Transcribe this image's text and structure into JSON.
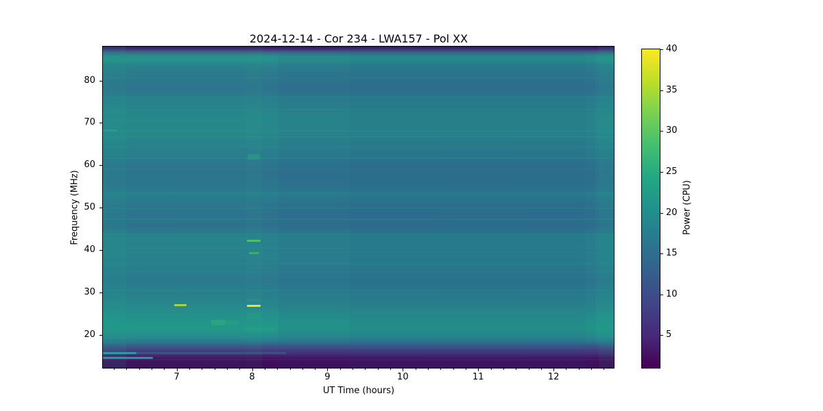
{
  "chart_data": {
    "type": "heatmap",
    "title": "2024-12-14 - Cor 234 - LWA157 - Pol XX",
    "xlabel": "UT Time (hours)",
    "ylabel": "Frequency (MHz)",
    "x_range": [
      6.02,
      12.8
    ],
    "x_ticks": [
      7,
      8,
      9,
      10,
      11,
      12
    ],
    "x_minor_tick_interval_hours": 0.166667,
    "y_range": [
      12.2,
      88.0
    ],
    "y_ticks": [
      20,
      30,
      40,
      50,
      60,
      70,
      80
    ],
    "colorbar": {
      "label": "Power (CPU)",
      "ticks": [
        5,
        10,
        15,
        20,
        25,
        30,
        35,
        40
      ],
      "range": [
        1,
        40
      ],
      "colormap": "viridis",
      "gradient_stops": [
        {
          "pos": 0.0,
          "color": "#fde725"
        },
        {
          "pos": 0.1,
          "color": "#bddf26"
        },
        {
          "pos": 0.2,
          "color": "#7ad151"
        },
        {
          "pos": 0.3,
          "color": "#44bf70"
        },
        {
          "pos": 0.4,
          "color": "#22a884"
        },
        {
          "pos": 0.5,
          "color": "#21918c"
        },
        {
          "pos": 0.6,
          "color": "#2a788e"
        },
        {
          "pos": 0.7,
          "color": "#355f8d"
        },
        {
          "pos": 0.8,
          "color": "#414487"
        },
        {
          "pos": 0.9,
          "color": "#482878"
        },
        {
          "pos": 1.0,
          "color": "#440154"
        }
      ]
    },
    "band_profile": [
      {
        "f": 88.0,
        "color": "#2e1356"
      },
      {
        "f": 87.35,
        "color": "#443271"
      },
      {
        "f": 86.71,
        "color": "#3a6389"
      },
      {
        "f": 85.74,
        "color": "#27908c"
      },
      {
        "f": 84.77,
        "color": "#26928b"
      },
      {
        "f": 83.64,
        "color": "#2a818e"
      },
      {
        "f": 81.21,
        "color": "#2d788e"
      },
      {
        "f": 77.98,
        "color": "#2e738e"
      },
      {
        "f": 75.07,
        "color": "#29808d"
      },
      {
        "f": 70.71,
        "color": "#27888b"
      },
      {
        "f": 66.67,
        "color": "#29858c"
      },
      {
        "f": 62.14,
        "color": "#2b7b8e"
      },
      {
        "f": 59.4,
        "color": "#2e728e"
      },
      {
        "f": 55.36,
        "color": "#2d748e"
      },
      {
        "f": 52.93,
        "color": "#2a7d8e"
      },
      {
        "f": 50.51,
        "color": "#2d748e"
      },
      {
        "f": 45.66,
        "color": "#2e708e"
      },
      {
        "f": 42.75,
        "color": "#28828d"
      },
      {
        "f": 36.77,
        "color": "#297f8e"
      },
      {
        "f": 32.73,
        "color": "#2c788e"
      },
      {
        "f": 28.69,
        "color": "#29818d"
      },
      {
        "f": 26.27,
        "color": "#27898c"
      },
      {
        "f": 23.84,
        "color": "#24938b"
      },
      {
        "f": 21.42,
        "color": "#22988a"
      },
      {
        "f": 19.48,
        "color": "#268b8d"
      },
      {
        "f": 18.19,
        "color": "#2e7390"
      },
      {
        "f": 16.89,
        "color": "#41497f"
      },
      {
        "f": 15.6,
        "color": "#452f79"
      },
      {
        "f": 14.31,
        "color": "#430e5d"
      },
      {
        "f": 12.2,
        "color": "#3c0d57"
      }
    ],
    "stripes": [
      {
        "f": 80.5,
        "color": "rgba(31,160,135,0.15)"
      },
      {
        "f": 76.0,
        "color": "rgba(31,160,135,0.20)"
      },
      {
        "f": 73.2,
        "color": "rgba(31,160,135,0.15)"
      },
      {
        "f": 68.2,
        "color": "rgba(31,160,135,0.25)"
      },
      {
        "f": 66.6,
        "color": "rgba(31,160,135,0.30)"
      },
      {
        "f": 64.2,
        "color": "rgba(31,160,135,0.20)"
      },
      {
        "f": 61.7,
        "color": "rgba(31,160,135,0.30)"
      },
      {
        "f": 59.0,
        "color": "rgba(31,160,135,0.15)"
      },
      {
        "f": 53.4,
        "color": "rgba(31,160,135,0.25)"
      },
      {
        "f": 49.9,
        "color": "rgba(31,160,135,0.20)"
      },
      {
        "f": 47.2,
        "color": "rgba(31,160,135,0.25)"
      },
      {
        "f": 43.7,
        "color": "rgba(31,160,135,0.20)"
      },
      {
        "f": 40.5,
        "color": "rgba(31,160,135,0.15)"
      },
      {
        "f": 36.8,
        "color": "rgba(31,160,135,0.20)"
      },
      {
        "f": 34.9,
        "color": "rgba(31,160,135,0.15)"
      },
      {
        "f": 30.4,
        "color": "rgba(31,160,135,0.20)"
      }
    ],
    "column_tints": [
      {
        "t": [
          6.02,
          6.33
        ],
        "color": "rgba(31,163,138,0.12)"
      },
      {
        "t": [
          6.02,
          7.92
        ],
        "color": "rgba(31,163,138,0.05)"
      },
      {
        "t": [
          8.35,
          12.55
        ],
        "color": "rgba(38,70,132,0.07)"
      },
      {
        "t": [
          9.3,
          12.42
        ],
        "color": "rgba(38,70,132,0.05)"
      },
      {
        "t": [
          12.6,
          12.8
        ],
        "color": "rgba(31,163,138,0.10)"
      },
      {
        "t": [
          7.92,
          8.13
        ],
        "color": "rgba(45,180,130,0.06)"
      }
    ],
    "features": [
      {
        "name": "burst-27mhz-t7",
        "t": [
          6.965,
          7.135
        ],
        "f": [
          26.7,
          27.2
        ],
        "color": "#a6d53c",
        "alpha": 1
      },
      {
        "name": "burst-27mhz-t8",
        "t": [
          7.93,
          8.115
        ],
        "f": [
          26.6,
          27.1
        ],
        "color": "#e9e434",
        "alpha": 1
      },
      {
        "name": "burst-42mhz-t8",
        "t": [
          7.93,
          8.115
        ],
        "f": [
          41.9,
          42.5
        ],
        "color": "#4cc26c",
        "alpha": 1
      },
      {
        "name": "burst-39mhz-t8",
        "t": [
          7.955,
          8.1
        ],
        "f": [
          39.0,
          39.5
        ],
        "color": "#3ab475",
        "alpha": 0.9
      },
      {
        "name": "burst-62mhz-t8",
        "t": [
          7.94,
          8.1
        ],
        "f": [
          61.4,
          62.6
        ],
        "color": "#2d9e87",
        "alpha": 0.55
      },
      {
        "name": "patch-23mhz-a",
        "t": [
          7.46,
          7.64
        ],
        "f": [
          22.2,
          23.5
        ],
        "color": "#2aa87c",
        "alpha": 0.85
      },
      {
        "name": "patch-23mhz-b",
        "t": [
          7.64,
          7.82
        ],
        "f": [
          22.4,
          23.3
        ],
        "color": "#29a37f",
        "alpha": 0.55
      },
      {
        "name": "band-21mhz",
        "t": [
          7.9,
          8.3
        ],
        "f": [
          20.6,
          21.7
        ],
        "color": "#28a081",
        "alpha": 0.38
      },
      {
        "name": "tint-25mhz-t8",
        "t": [
          7.93,
          8.115
        ],
        "f": [
          23.8,
          25.2
        ],
        "color": "#2aa57e",
        "alpha": 0.3
      },
      {
        "name": "line-28mhz-t8",
        "t": [
          7.93,
          8.115
        ],
        "f": [
          28.0,
          28.45
        ],
        "color": "#2b9c87",
        "alpha": 0.5
      },
      {
        "name": "streak-16mhz",
        "t": [
          6.02,
          6.47
        ],
        "f": [
          15.45,
          15.95
        ],
        "color": "#2fa3a6",
        "alpha": 0.9
      },
      {
        "name": "streak-15mhz",
        "t": [
          6.02,
          6.68
        ],
        "f": [
          14.35,
          14.8
        ],
        "color": "#2fa3a6",
        "alpha": 0.85
      },
      {
        "name": "streak-16mhz-ext",
        "t": [
          6.47,
          8.45
        ],
        "f": [
          15.5,
          15.9
        ],
        "color": "#2fa3a6",
        "alpha": 0.25
      },
      {
        "name": "dash-68mhz-t6",
        "t": [
          6.02,
          6.21
        ],
        "f": [
          68.0,
          68.5
        ],
        "color": "#2f9e8a",
        "alpha": 0.7
      },
      {
        "name": "line-17mhz-wide",
        "t": [
          6.02,
          12.8
        ],
        "f": [
          16.7,
          17.1
        ],
        "color": "#50519b",
        "alpha": 0.35
      },
      {
        "name": "line-14mhz-wide",
        "t": [
          6.02,
          12.8
        ],
        "f": [
          13.95,
          14.3
        ],
        "color": "#5a3f8f",
        "alpha": 0.2
      }
    ]
  }
}
